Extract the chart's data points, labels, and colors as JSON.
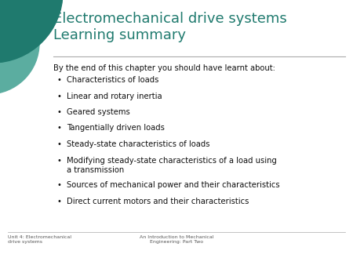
{
  "title": "Electromechanical drive systems\nLearning summary",
  "title_color": "#1F7A6E",
  "slide_bg": "#FFFFFF",
  "intro_text": "By the end of this chapter you should have learnt about:",
  "bullet_points": [
    "Characteristics of loads",
    "Linear and rotary inertia",
    "Geared systems",
    "Tangentially driven loads",
    "Steady-state characteristics of loads",
    "Modifying steady-state characteristics of a load using\na transmission",
    "Sources of mechanical power and their characteristics",
    "Direct current motors and their characteristics"
  ],
  "footer_left": "Unit 4: Electromechanical\ndrive systems",
  "footer_center": "An Introduction to Mechanical\nEngineering: Part Two",
  "text_color": "#111111",
  "separator_color": "#AAAAAA",
  "corner_color_dark": "#1F7A6E",
  "corner_color_light": "#5BADA0"
}
